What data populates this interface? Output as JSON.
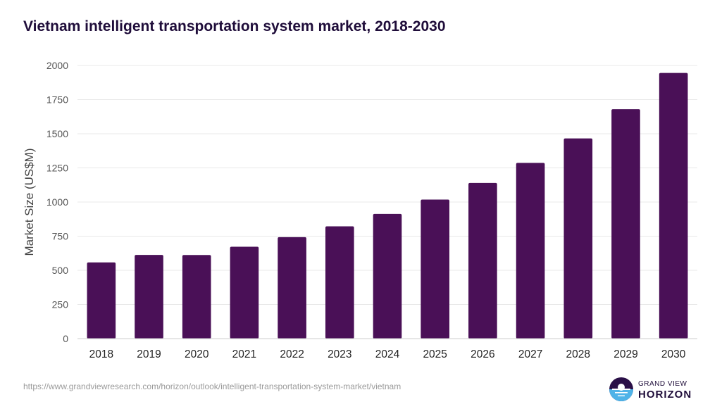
{
  "chart_data": {
    "type": "bar",
    "title": "Vietnam intelligent transportation system market, 2018-2030",
    "xlabel": "",
    "ylabel": "Market Size (US$M)",
    "categories": [
      "2018",
      "2019",
      "2020",
      "2021",
      "2022",
      "2023",
      "2024",
      "2025",
      "2026",
      "2027",
      "2028",
      "2029",
      "2030"
    ],
    "values": [
      558,
      613,
      612,
      673,
      743,
      822,
      913,
      1018,
      1140,
      1287,
      1466,
      1680,
      1945
    ],
    "ylim": [
      0,
      2000
    ],
    "yticks": [
      "0",
      "250",
      "500",
      "750",
      "1000",
      "1250",
      "1500",
      "1750",
      "2000"
    ],
    "grid": true,
    "bar_color": "#4a1057",
    "grid_color": "#e8e8e8"
  },
  "source_url": "https://www.grandviewresearch.com/horizon/outlook/intelligent-transportation-system-market/vietnam",
  "logo": {
    "line1": "GRAND VIEW",
    "line2": "HORIZON",
    "icon": "horizon-logo-icon",
    "colors": {
      "dark": "#2a0f47",
      "light": "#4fb3e8"
    }
  }
}
